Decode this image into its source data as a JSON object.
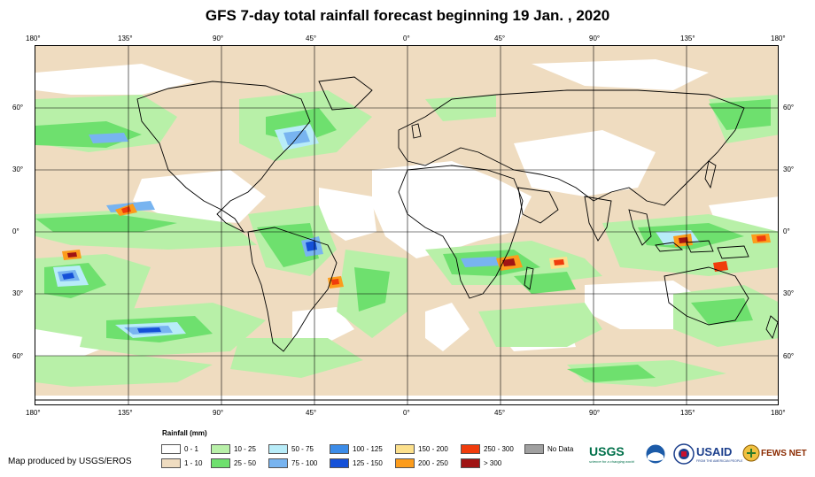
{
  "title": "GFS 7-day total rainfall forecast beginning 19 Jan. , 2020",
  "credit": "Map produced by USGS/EROS",
  "longitude_ticks": [
    "180°",
    "135°",
    "90°",
    "45°",
    "0°",
    "45°",
    "90°",
    "135°",
    "180°"
  ],
  "latitude_ticks": [
    "60°",
    "30°",
    "0°",
    "30°",
    "60°"
  ],
  "legend": {
    "title": "Rainfall (mm)",
    "items": [
      {
        "label": "0 - 1",
        "color": "#ffffff"
      },
      {
        "label": "1 - 10",
        "color": "#efdcc0"
      },
      {
        "label": "10 - 25",
        "color": "#b8f0a8"
      },
      {
        "label": "25 - 50",
        "color": "#6ee06e"
      },
      {
        "label": "50 - 75",
        "color": "#b8ecf8"
      },
      {
        "label": "75 - 100",
        "color": "#78b4f0"
      },
      {
        "label": "100 - 125",
        "color": "#3c8ce8"
      },
      {
        "label": "125 - 150",
        "color": "#1450d8"
      },
      {
        "label": "150 - 200",
        "color": "#fce08c"
      },
      {
        "label": "200 - 250",
        "color": "#fc9c1c"
      },
      {
        "label": "250 - 300",
        "color": "#f03c0c"
      },
      {
        "label": "> 300",
        "color": "#a01414"
      },
      {
        "label": "No Data",
        "color": "#a0a0a0"
      }
    ]
  },
  "logos": {
    "usgs": "USGS",
    "usgs_tagline": "science for a changing world",
    "usaid": "USAID",
    "usaid_tagline": "FROM THE AMERICAN PEOPLE",
    "fews": "FEWS NET"
  }
}
